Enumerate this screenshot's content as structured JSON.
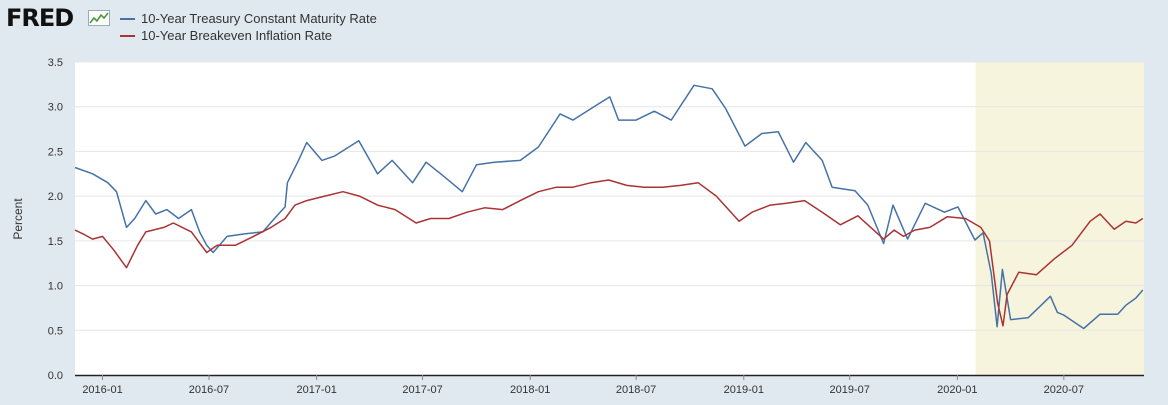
{
  "brand": {
    "logo_text": "FRED",
    "logo_icon": "line-chart-icon"
  },
  "chart_data": {
    "type": "line",
    "title": "",
    "xlabel": "",
    "ylabel": "Percent",
    "ylim": [
      0,
      3.5
    ],
    "yticks": [
      "0.0",
      "0.5",
      "1.0",
      "1.5",
      "2.0",
      "2.5",
      "3.0",
      "3.5"
    ],
    "x_range": [
      "2015-11-15",
      "2020-11-15"
    ],
    "xticks": [
      "2016-01",
      "2016-07",
      "2017-01",
      "2017-07",
      "2018-01",
      "2018-07",
      "2019-01",
      "2019-07",
      "2020-01",
      "2020-07"
    ],
    "grid": true,
    "legend_position": "top-left",
    "recession_shading": {
      "start": "2020-02",
      "end": "2020-11",
      "color": "#f6f4dc"
    },
    "series": [
      {
        "name": "10-Year Treasury Constant Maturity Rate",
        "color": "#4572a7",
        "points": [
          [
            "2015-11-15",
            2.32
          ],
          [
            "2015-12-15",
            2.25
          ],
          [
            "2016-01-10",
            2.15
          ],
          [
            "2016-01-25",
            2.05
          ],
          [
            "2016-02-11",
            1.65
          ],
          [
            "2016-02-25",
            1.75
          ],
          [
            "2016-03-15",
            1.95
          ],
          [
            "2016-04-01",
            1.8
          ],
          [
            "2016-04-20",
            1.85
          ],
          [
            "2016-05-10",
            1.75
          ],
          [
            "2016-06-01",
            1.85
          ],
          [
            "2016-06-15",
            1.6
          ],
          [
            "2016-06-27",
            1.45
          ],
          [
            "2016-07-08",
            1.37
          ],
          [
            "2016-08-01",
            1.55
          ],
          [
            "2016-09-01",
            1.58
          ],
          [
            "2016-10-01",
            1.6
          ],
          [
            "2016-10-25",
            1.78
          ],
          [
            "2016-11-08",
            1.88
          ],
          [
            "2016-11-12",
            2.15
          ],
          [
            "2016-12-01",
            2.4
          ],
          [
            "2016-12-15",
            2.6
          ],
          [
            "2017-01-10",
            2.4
          ],
          [
            "2017-02-01",
            2.45
          ],
          [
            "2017-03-14",
            2.62
          ],
          [
            "2017-04-15",
            2.25
          ],
          [
            "2017-05-10",
            2.4
          ],
          [
            "2017-06-14",
            2.15
          ],
          [
            "2017-07-07",
            2.38
          ],
          [
            "2017-08-01",
            2.25
          ],
          [
            "2017-09-07",
            2.05
          ],
          [
            "2017-10-01",
            2.35
          ],
          [
            "2017-11-01",
            2.38
          ],
          [
            "2017-12-15",
            2.4
          ],
          [
            "2018-01-15",
            2.55
          ],
          [
            "2018-02-21",
            2.92
          ],
          [
            "2018-03-15",
            2.85
          ],
          [
            "2018-04-25",
            3.02
          ],
          [
            "2018-05-17",
            3.11
          ],
          [
            "2018-06-01",
            2.85
          ],
          [
            "2018-07-01",
            2.85
          ],
          [
            "2018-08-01",
            2.95
          ],
          [
            "2018-08-30",
            2.85
          ],
          [
            "2018-10-08",
            3.24
          ],
          [
            "2018-11-08",
            3.2
          ],
          [
            "2018-12-01",
            2.98
          ],
          [
            "2019-01-03",
            2.56
          ],
          [
            "2019-02-01",
            2.7
          ],
          [
            "2019-03-01",
            2.72
          ],
          [
            "2019-03-27",
            2.38
          ],
          [
            "2019-04-17",
            2.6
          ],
          [
            "2019-05-15",
            2.4
          ],
          [
            "2019-06-01",
            2.1
          ],
          [
            "2019-07-10",
            2.06
          ],
          [
            "2019-08-01",
            1.9
          ],
          [
            "2019-08-28",
            1.47
          ],
          [
            "2019-09-13",
            1.9
          ],
          [
            "2019-10-08",
            1.52
          ],
          [
            "2019-11-07",
            1.92
          ],
          [
            "2019-12-10",
            1.82
          ],
          [
            "2020-01-02",
            1.88
          ],
          [
            "2020-01-31",
            1.51
          ],
          [
            "2020-02-14",
            1.59
          ],
          [
            "2020-02-28",
            1.13
          ],
          [
            "2020-03-09",
            0.54
          ],
          [
            "2020-03-18",
            1.18
          ],
          [
            "2020-04-01",
            0.62
          ],
          [
            "2020-05-01",
            0.64
          ],
          [
            "2020-06-08",
            0.88
          ],
          [
            "2020-06-20",
            0.7
          ],
          [
            "2020-07-01",
            0.67
          ],
          [
            "2020-08-04",
            0.52
          ],
          [
            "2020-09-01",
            0.68
          ],
          [
            "2020-10-01",
            0.68
          ],
          [
            "2020-10-15",
            0.78
          ],
          [
            "2020-11-01",
            0.86
          ],
          [
            "2020-11-13",
            0.95
          ]
        ]
      },
      {
        "name": "10-Year Breakeven Inflation Rate",
        "color": "#aa3333",
        "points": [
          [
            "2015-11-15",
            1.62
          ],
          [
            "2015-12-01",
            1.57
          ],
          [
            "2015-12-15",
            1.52
          ],
          [
            "2016-01-01",
            1.55
          ],
          [
            "2016-01-20",
            1.4
          ],
          [
            "2016-02-11",
            1.2
          ],
          [
            "2016-03-01",
            1.45
          ],
          [
            "2016-03-15",
            1.6
          ],
          [
            "2016-04-15",
            1.65
          ],
          [
            "2016-05-01",
            1.7
          ],
          [
            "2016-06-01",
            1.6
          ],
          [
            "2016-06-27",
            1.37
          ],
          [
            "2016-07-15",
            1.45
          ],
          [
            "2016-08-15",
            1.45
          ],
          [
            "2016-09-15",
            1.55
          ],
          [
            "2016-10-15",
            1.65
          ],
          [
            "2016-11-08",
            1.75
          ],
          [
            "2016-11-25",
            1.9
          ],
          [
            "2016-12-15",
            1.95
          ],
          [
            "2017-01-15",
            2.0
          ],
          [
            "2017-02-15",
            2.05
          ],
          [
            "2017-03-15",
            2.0
          ],
          [
            "2017-04-15",
            1.9
          ],
          [
            "2017-05-15",
            1.85
          ],
          [
            "2017-06-20",
            1.7
          ],
          [
            "2017-07-15",
            1.75
          ],
          [
            "2017-08-15",
            1.75
          ],
          [
            "2017-09-15",
            1.82
          ],
          [
            "2017-10-15",
            1.87
          ],
          [
            "2017-11-15",
            1.85
          ],
          [
            "2017-12-15",
            1.95
          ],
          [
            "2018-01-15",
            2.05
          ],
          [
            "2018-02-15",
            2.1
          ],
          [
            "2018-03-15",
            2.1
          ],
          [
            "2018-04-15",
            2.15
          ],
          [
            "2018-05-15",
            2.18
          ],
          [
            "2018-06-15",
            2.12
          ],
          [
            "2018-07-15",
            2.1
          ],
          [
            "2018-08-15",
            2.1
          ],
          [
            "2018-09-15",
            2.12
          ],
          [
            "2018-10-15",
            2.15
          ],
          [
            "2018-11-15",
            2.0
          ],
          [
            "2018-12-24",
            1.72
          ],
          [
            "2019-01-15",
            1.82
          ],
          [
            "2019-02-15",
            1.9
          ],
          [
            "2019-03-15",
            1.92
          ],
          [
            "2019-04-15",
            1.95
          ],
          [
            "2019-05-15",
            1.82
          ],
          [
            "2019-06-15",
            1.68
          ],
          [
            "2019-07-15",
            1.78
          ],
          [
            "2019-08-28",
            1.52
          ],
          [
            "2019-09-15",
            1.62
          ],
          [
            "2019-10-01",
            1.55
          ],
          [
            "2019-10-20",
            1.62
          ],
          [
            "2019-11-15",
            1.65
          ],
          [
            "2019-12-15",
            1.77
          ],
          [
            "2020-01-15",
            1.75
          ],
          [
            "2020-02-10",
            1.65
          ],
          [
            "2020-02-25",
            1.5
          ],
          [
            "2020-03-10",
            0.8
          ],
          [
            "2020-03-19",
            0.55
          ],
          [
            "2020-03-26",
            0.9
          ],
          [
            "2020-04-15",
            1.15
          ],
          [
            "2020-05-15",
            1.12
          ],
          [
            "2020-06-15",
            1.3
          ],
          [
            "2020-07-15",
            1.45
          ],
          [
            "2020-08-15",
            1.72
          ],
          [
            "2020-09-01",
            1.8
          ],
          [
            "2020-09-25",
            1.63
          ],
          [
            "2020-10-15",
            1.72
          ],
          [
            "2020-11-01",
            1.7
          ],
          [
            "2020-11-13",
            1.75
          ]
        ]
      }
    ]
  }
}
